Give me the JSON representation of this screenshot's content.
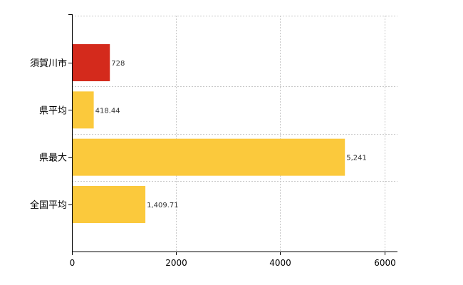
{
  "chart_data": {
    "type": "bar",
    "orientation": "horizontal",
    "categories": [
      "須賀川市",
      "県平均",
      "県最大",
      "全国平均"
    ],
    "values": [
      728,
      418.44,
      5241,
      1409.71
    ],
    "value_labels": [
      "728",
      "418.44",
      "5,241",
      "1,409.71"
    ],
    "colors": [
      "#d42a1c",
      "#fbc93c",
      "#fbc93c",
      "#fbc93c"
    ],
    "xlim": [
      0,
      6250
    ],
    "xticks": [
      0,
      2000,
      4000,
      6000
    ],
    "xtick_labels": [
      "0",
      "2000",
      "4000",
      "6000"
    ],
    "grid": true,
    "legend": "none",
    "title": "",
    "xlabel": "",
    "ylabel": ""
  }
}
